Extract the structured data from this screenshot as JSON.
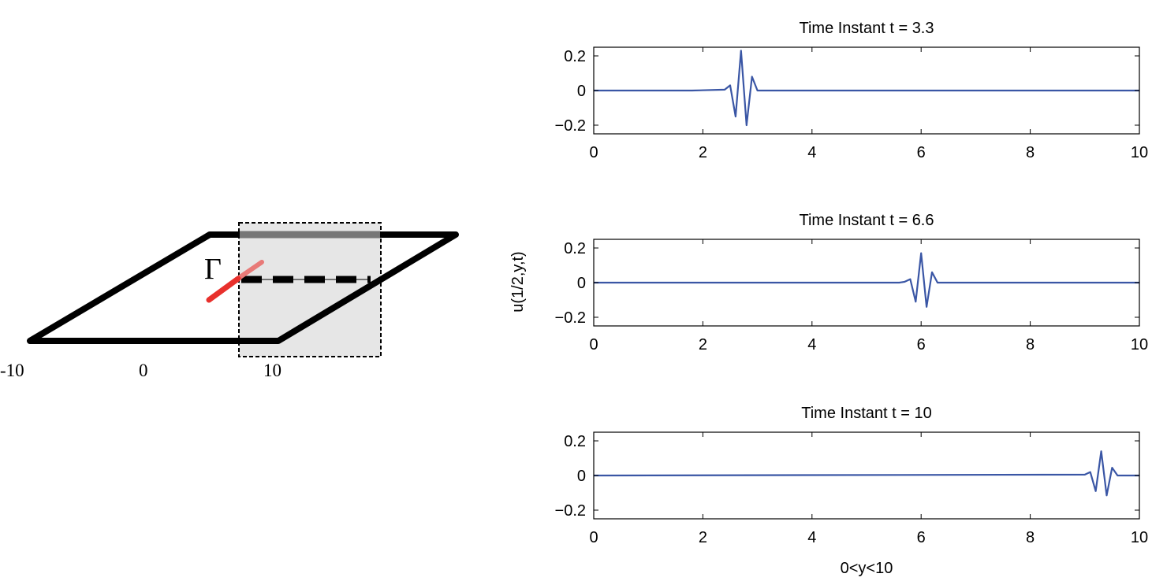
{
  "diagram": {
    "domain_labels": [
      "-10",
      "0",
      "10"
    ],
    "gamma_label": "Γ",
    "colors": {
      "outline": "#000000",
      "shade": "#e6e6e6",
      "gamma": "#e8302c"
    }
  },
  "plots": {
    "ylabel": "u(1/2,y,t)",
    "xlabel": "0<y<10",
    "line_color": "#3a56a5"
  },
  "chart_data": [
    {
      "type": "line",
      "title": "Time Instant t = 3.3",
      "xlim": [
        0,
        10
      ],
      "ylim": [
        -0.25,
        0.25
      ],
      "xticks": [
        0,
        2,
        4,
        6,
        8,
        10
      ],
      "yticks": [
        0.2,
        0,
        -0.2
      ],
      "ytick_labels": [
        "0.2",
        "0",
        "−0.2"
      ],
      "grid": false,
      "x": [
        0,
        1.8,
        2.4,
        2.5,
        2.6,
        2.7,
        2.8,
        2.9,
        3.0,
        10
      ],
      "y": [
        0,
        0,
        0.005,
        0.03,
        -0.15,
        0.23,
        -0.2,
        0.08,
        0,
        0
      ]
    },
    {
      "type": "line",
      "title": "Time Instant t = 6.6",
      "xlim": [
        0,
        10
      ],
      "ylim": [
        -0.25,
        0.25
      ],
      "xticks": [
        0,
        2,
        4,
        6,
        8,
        10
      ],
      "yticks": [
        0.2,
        0,
        -0.2
      ],
      "ytick_labels": [
        "0.2",
        "0",
        "−0.2"
      ],
      "grid": false,
      "x": [
        0,
        5.6,
        5.7,
        5.8,
        5.9,
        6.0,
        6.1,
        6.2,
        6.3,
        10
      ],
      "y": [
        0,
        0,
        0.005,
        0.02,
        -0.11,
        0.17,
        -0.14,
        0.06,
        0,
        0
      ]
    },
    {
      "type": "line",
      "title": "Time Instant t = 10",
      "xlim": [
        0,
        10
      ],
      "ylim": [
        -0.25,
        0.25
      ],
      "xticks": [
        0,
        2,
        4,
        6,
        8,
        10
      ],
      "yticks": [
        0.2,
        0,
        -0.2
      ],
      "ytick_labels": [
        "0.2",
        "0",
        "−0.2"
      ],
      "grid": false,
      "x": [
        0,
        9.0,
        9.1,
        9.2,
        9.3,
        9.4,
        9.5,
        9.6,
        10
      ],
      "y": [
        0,
        0.005,
        0.02,
        -0.09,
        0.14,
        -0.115,
        0.045,
        0,
        0
      ]
    }
  ]
}
